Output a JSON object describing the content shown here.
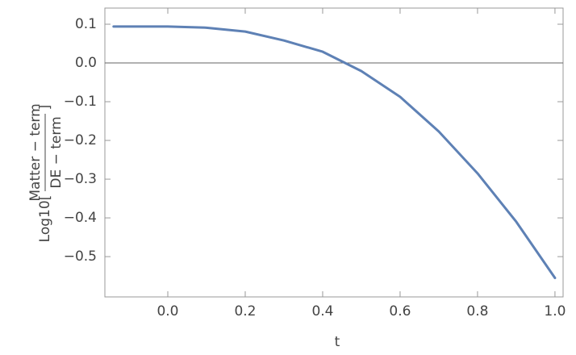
{
  "chart_data": {
    "type": "line",
    "x_label": "t",
    "y_label": {
      "prefix": "Log10[",
      "numerator": "Matter − term",
      "denominator": "DE − term",
      "suffix": "]"
    },
    "x": [
      -0.14,
      -0.1,
      0,
      0.1,
      0.2,
      0.3,
      0.4,
      0.5,
      0.6,
      0.7,
      0.8,
      0.9,
      1.0
    ],
    "series": [
      {
        "name": "Log10[Matter/DE]",
        "color": "#5e81b5",
        "values": [
          0.094,
          0.094,
          0.094,
          0.091,
          0.081,
          0.058,
          0.029,
          -0.021,
          -0.0875,
          -0.177,
          -0.285,
          -0.41,
          -0.555
        ]
      }
    ],
    "xlim": [
      -0.1625,
      1.021
    ],
    "ylim": [
      -0.604,
      0.1417
    ],
    "xticks": [
      {
        "value": 0,
        "label": "0.0"
      },
      {
        "value": 0.2,
        "label": "0.2"
      },
      {
        "value": 0.4,
        "label": "0.4"
      },
      {
        "value": 0.6,
        "label": "0.6"
      },
      {
        "value": 0.8,
        "label": "0.8"
      },
      {
        "value": 1,
        "label": "1.0"
      }
    ],
    "yticks": [
      {
        "value": 0.1,
        "label": "0.1"
      },
      {
        "value": 0,
        "label": "0.0"
      },
      {
        "value": -0.1,
        "label": "−0.1"
      },
      {
        "value": -0.2,
        "label": "−0.2"
      },
      {
        "value": -0.3,
        "label": "−0.3"
      },
      {
        "value": -0.4,
        "label": "−0.4"
      },
      {
        "value": -0.5,
        "label": "−0.5"
      }
    ],
    "zero_line": true
  }
}
